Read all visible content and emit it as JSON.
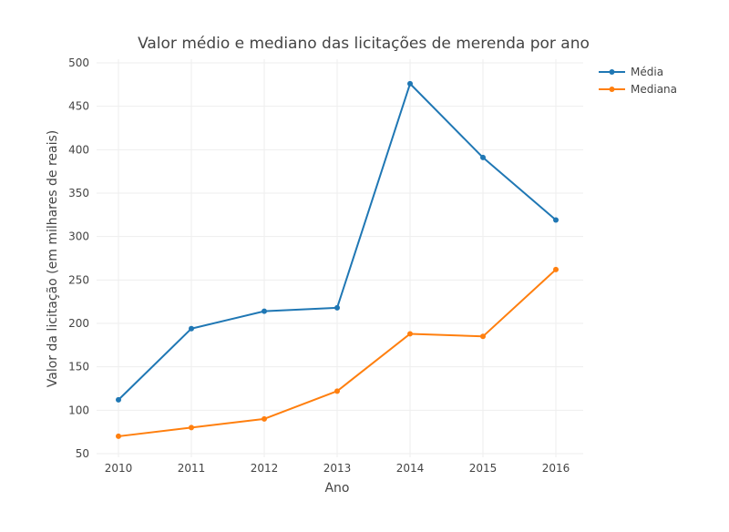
{
  "chart_data": {
    "type": "line",
    "title": "Valor médio e mediano das licitações de merenda por ano",
    "xlabel": "Ano",
    "ylabel": "Valor da licitação (em milhares de reais)",
    "x": [
      2010,
      2011,
      2012,
      2013,
      2014,
      2015,
      2016
    ],
    "x_ticks": [
      "2010",
      "2011",
      "2012",
      "2013",
      "2014",
      "2015",
      "2016"
    ],
    "y_ticks": [
      "50",
      "100",
      "150",
      "200",
      "250",
      "300",
      "350",
      "400",
      "450",
      "500"
    ],
    "ylim": [
      50,
      500
    ],
    "grid": true,
    "legend_position": "top-right",
    "series": [
      {
        "name": "Média",
        "color": "#1f77b4",
        "values": [
          112,
          194,
          214,
          218,
          476,
          391,
          319
        ]
      },
      {
        "name": "Mediana",
        "color": "#ff7f0e",
        "values": [
          70,
          80,
          90,
          122,
          188,
          185,
          262
        ]
      }
    ]
  }
}
